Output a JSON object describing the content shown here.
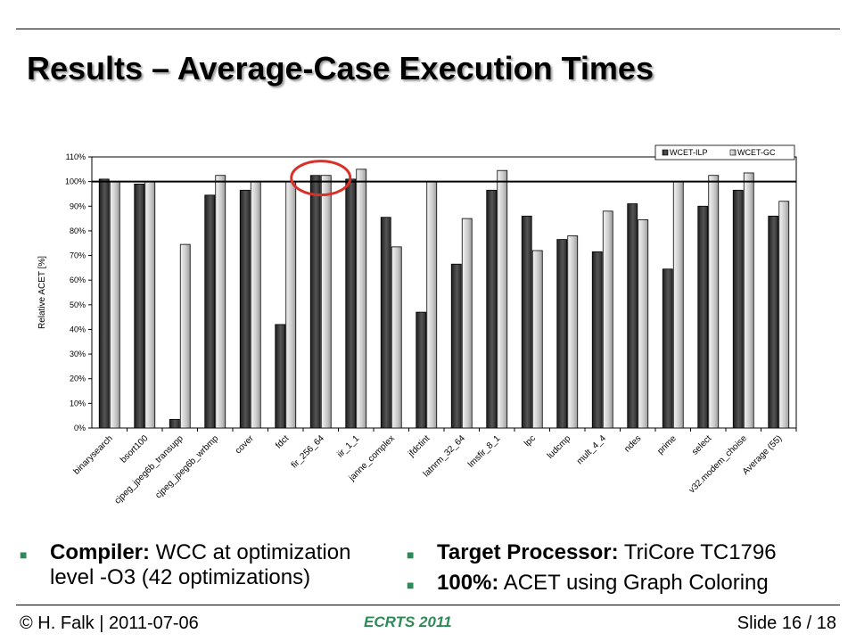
{
  "slide": {
    "title": "Results – Average-Case Execution Times",
    "footer_left": "© H. Falk | 2011-07-06",
    "footer_center": "ECRTS 2011",
    "footer_right": "Slide 16 / 18",
    "bullets_left": [
      {
        "bold": "Compiler:",
        "text": " WCC at optimization level -O3 (42 optimizations)"
      }
    ],
    "bullets_right": [
      {
        "bold": "Target Processor:",
        "text": " TriCore TC1796"
      },
      {
        "bold": "100%:",
        "text": " ACET using Graph Coloring"
      }
    ],
    "colors": {
      "accent": "#2e8b57",
      "highlight_circle": "#d9302a"
    }
  },
  "chart_data": {
    "type": "bar",
    "ylabel": "Relative ACET [%]",
    "ylim": [
      0,
      110
    ],
    "yticks": [
      "0%",
      "10%",
      "20%",
      "30%",
      "40%",
      "50%",
      "60%",
      "70%",
      "80%",
      "90%",
      "100%",
      "110%"
    ],
    "reference_line": 100,
    "legend_position": "top-right",
    "categories": [
      "binarysearch",
      "bsort100",
      "cjpeg_jpeg6b_transupp",
      "cjpeg_jpeg6b_wrbmp",
      "cover",
      "fdct",
      "fir_256_64",
      "iir_1_1",
      "janne_complex",
      "jfdctint",
      "latnrm_32_64",
      "lmsfir_8_1",
      "lpc",
      "ludcmp",
      "mult_4_4",
      "ndes",
      "prime",
      "select",
      "v32.modem_choise",
      "Average (55)"
    ],
    "series": [
      {
        "name": "WCET-ILP",
        "color": "#3a3a3a",
        "values": [
          101,
          99,
          3.5,
          94.5,
          96.5,
          42,
          102.5,
          101,
          85.5,
          47,
          66.5,
          96.5,
          86,
          76.5,
          71.5,
          91,
          64.5,
          90,
          96.5,
          86
        ]
      },
      {
        "name": "WCET-GC",
        "color": "#d8d8d8",
        "values": [
          100,
          100,
          74.5,
          102.5,
          100,
          100,
          102.5,
          105,
          73.5,
          100,
          85,
          104.5,
          72,
          78,
          88,
          84.5,
          100,
          102.5,
          103.5,
          92
        ]
      }
    ],
    "highlighted_category": "fir_256_64"
  }
}
